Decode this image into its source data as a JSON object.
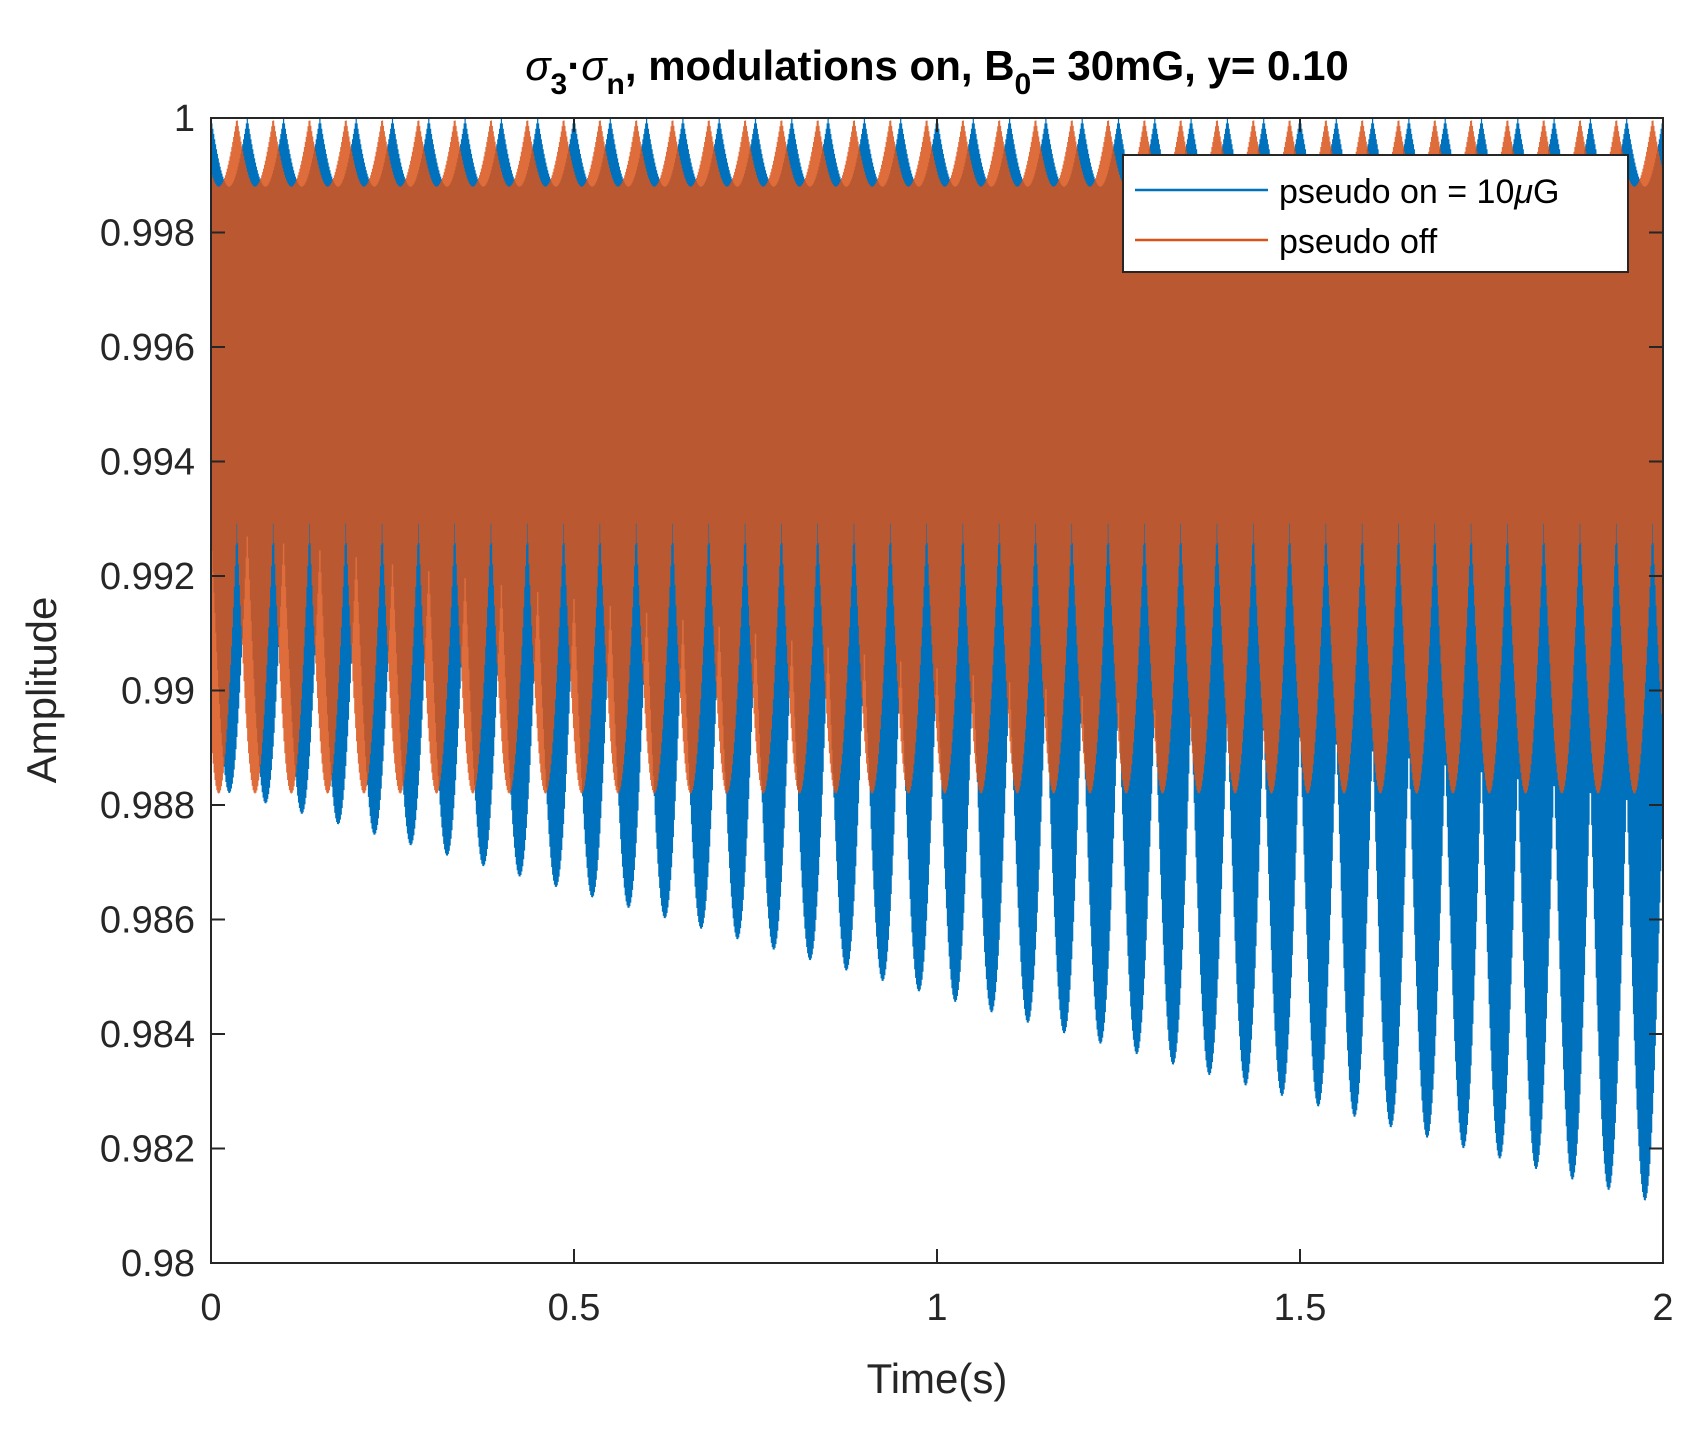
{
  "chart_data": {
    "type": "line",
    "title": {
      "sigma": "σ",
      "sub_a": "3",
      "dot": "·",
      "sub_b": "n",
      "part1": ", modulations on, B",
      "sub_c": "0",
      "part2": "= 30mG, y= 0.10"
    },
    "xlabel": "Time(s)",
    "ylabel": "Amplitude",
    "xlim": [
      0,
      2
    ],
    "ylim": [
      0.98,
      1.0
    ],
    "xticks": [
      0,
      0.5,
      1,
      1.5,
      2
    ],
    "xtick_labels": [
      "0",
      "0.5",
      "1",
      "1.5",
      "2"
    ],
    "yticks": [
      0.98,
      0.982,
      0.984,
      0.986,
      0.988,
      0.99,
      0.992,
      0.994,
      0.996,
      0.998,
      1.0
    ],
    "ytick_labels": [
      "0.98",
      "0.982",
      "0.984",
      "0.986",
      "0.988",
      "0.99",
      "0.992",
      "0.994",
      "0.996",
      "0.998",
      "1"
    ],
    "legend_position": "top-right",
    "series": [
      {
        "name": "pseudo on = 10μG",
        "legend_prefix": "pseudo on = 10",
        "legend_mu": "μ",
        "legend_suffix": "G",
        "color": "#0072BD",
        "description": "fast oscillation between an envelope minimum and ~1.0; lower envelope decays linearly",
        "envelope_min_start": 0.9883,
        "envelope_min_end": 0.981,
        "max": 1.0
      },
      {
        "name": "pseudo off",
        "color": "#D95319",
        "description": "fast oscillation between ~0.9882 and 1.0, stable over time",
        "envelope_min_start": 0.9882,
        "envelope_min_end": 0.9882,
        "max": 1.0
      }
    ]
  }
}
